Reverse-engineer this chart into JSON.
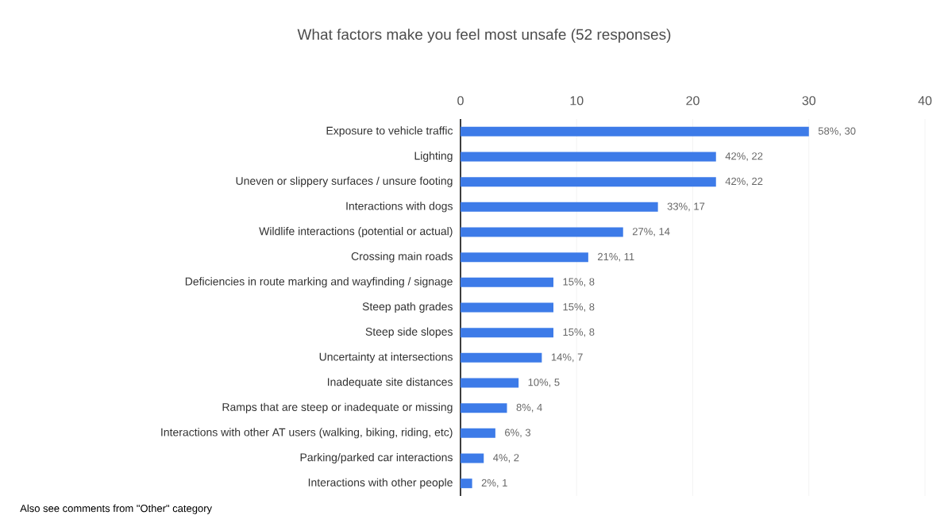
{
  "chart_data": {
    "type": "bar",
    "orientation": "horizontal",
    "title": "What factors make you feel most unsafe (52 responses)",
    "categories": [
      "Exposure to vehicle traffic",
      "Lighting",
      "Uneven or slippery surfaces / unsure footing",
      "Interactions with dogs",
      "Wildlife interactions (potential or actual)",
      "Crossing main roads",
      "Deficiencies in route marking and wayfinding / signage",
      "Steep path grades",
      "Steep side slopes",
      "Uncertainty at intersections",
      "Inadequate site distances",
      "Ramps that are steep or inadequate or missing",
      "Interactions with other AT users (walking, biking, riding, etc)",
      "Parking/parked car interactions",
      "Interactions with other people"
    ],
    "values": [
      30,
      22,
      22,
      17,
      14,
      11,
      8,
      8,
      8,
      7,
      5,
      4,
      3,
      2,
      1
    ],
    "value_labels": [
      "58%, 30",
      "42%, 22",
      "42%, 22",
      "33%, 17",
      "27%, 14",
      "21%, 11",
      "15%, 8",
      "15%, 8",
      "15%, 8",
      "14%, 7",
      "10%, 5",
      "8%, 4",
      "6%, 3",
      "4%, 2",
      "2%, 1"
    ],
    "color": "#3d7be8",
    "xlim": [
      0,
      40
    ],
    "xticks": [
      0,
      10,
      20,
      30,
      40
    ],
    "grid": "x",
    "annotations": [
      "Also see comments from \"Other\" category"
    ]
  }
}
